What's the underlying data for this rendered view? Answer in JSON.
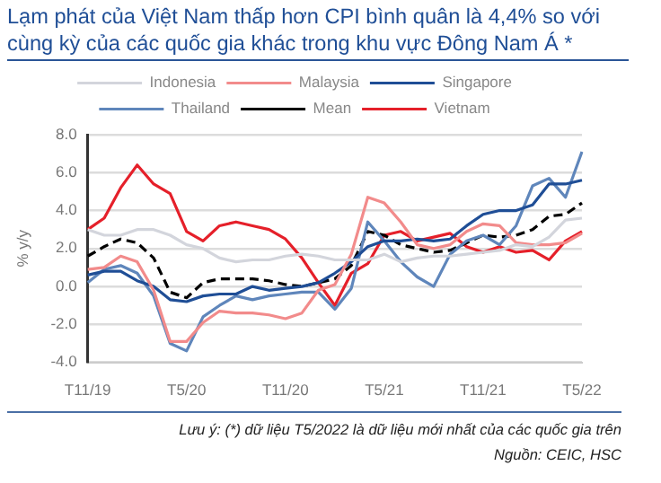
{
  "chart_data": {
    "type": "line",
    "title": "Lạm phát của Việt Nam thấp hơn CPI bình quân là 4,4% so với cùng kỳ của các quốc gia khác trong khu vực Đông Nam Á *",
    "ylabel": "% y/y",
    "categories": [
      "T11/19",
      null,
      null,
      null,
      null,
      null,
      "T5/20",
      null,
      null,
      null,
      null,
      null,
      "T11/20",
      null,
      null,
      null,
      null,
      null,
      "T5/21",
      null,
      null,
      null,
      null,
      null,
      "T11/21",
      null,
      null,
      null,
      null,
      null,
      "T5/22"
    ],
    "series": [
      {
        "name": "Indonesia",
        "color": "#d3d5dc",
        "values": [
          3.0,
          2.7,
          2.7,
          3.0,
          3.0,
          2.7,
          2.2,
          2.0,
          1.5,
          1.3,
          1.4,
          1.4,
          1.6,
          1.7,
          1.6,
          1.4,
          1.4,
          1.4,
          1.7,
          1.3,
          1.5,
          1.6,
          1.6,
          1.7,
          1.8,
          1.9,
          2.2,
          2.1,
          2.6,
          3.5,
          3.6
        ]
      },
      {
        "name": "Malaysia",
        "color": "#f28b8b",
        "values": [
          0.9,
          1.0,
          1.6,
          1.3,
          -0.2,
          -2.9,
          -2.9,
          -1.9,
          -1.3,
          -1.4,
          -1.4,
          -1.5,
          -1.7,
          -1.4,
          -0.2,
          0.1,
          1.7,
          4.7,
          4.4,
          3.4,
          2.2,
          2.0,
          2.2,
          2.9,
          3.3,
          3.2,
          2.3,
          2.2,
          2.2,
          2.3,
          2.8
        ]
      },
      {
        "name": "Singapore",
        "color": "#1f4e96",
        "values": [
          0.6,
          0.8,
          0.8,
          0.3,
          0.0,
          -0.7,
          -0.8,
          -0.5,
          -0.4,
          -0.4,
          0.0,
          -0.2,
          -0.1,
          0.0,
          0.2,
          0.7,
          1.3,
          2.1,
          2.4,
          2.4,
          2.5,
          2.4,
          2.5,
          3.2,
          3.8,
          4.0,
          4.0,
          4.3,
          5.4,
          5.4,
          5.6
        ]
      },
      {
        "name": "Thailand",
        "color": "#5f86bb",
        "values": [
          0.2,
          0.9,
          1.1,
          0.7,
          -0.5,
          -3.0,
          -3.4,
          -1.6,
          -1.0,
          -0.5,
          -0.7,
          -0.5,
          -0.4,
          -0.3,
          -0.3,
          -1.2,
          -0.1,
          3.4,
          2.4,
          1.3,
          0.5,
          0.0,
          1.7,
          2.4,
          2.7,
          2.2,
          3.2,
          5.3,
          5.7,
          4.7,
          7.1
        ]
      },
      {
        "name": "Mean",
        "color": "#000000",
        "line_style": "dashed",
        "values": [
          1.6,
          2.1,
          2.5,
          2.3,
          1.5,
          -0.3,
          -0.6,
          0.2,
          0.4,
          0.4,
          0.4,
          0.3,
          0.1,
          0.0,
          0.2,
          0.4,
          1.1,
          2.9,
          2.7,
          2.2,
          2.0,
          1.8,
          1.9,
          2.3,
          2.7,
          2.6,
          2.7,
          3.0,
          3.7,
          3.8,
          4.4
        ]
      },
      {
        "name": "Vietnam",
        "color": "#e5202a",
        "values": [
          3.0,
          3.6,
          5.2,
          6.4,
          5.4,
          4.9,
          2.9,
          2.4,
          3.2,
          3.4,
          3.2,
          3.0,
          2.5,
          1.5,
          0.2,
          -1.0,
          0.7,
          1.2,
          2.7,
          2.9,
          2.4,
          2.6,
          2.8,
          2.1,
          1.8,
          2.1,
          1.8,
          1.9,
          1.4,
          2.4,
          2.9
        ]
      }
    ],
    "ylim": [
      -4.0,
      8.0
    ],
    "yticks": [
      {
        "value": -4,
        "label": "-4.0"
      },
      {
        "value": -2,
        "label": "-2.0"
      },
      {
        "value": 0,
        "label": "0.0"
      },
      {
        "value": 2,
        "label": "2.0"
      },
      {
        "value": 4,
        "label": "4.0"
      },
      {
        "value": 6,
        "label": "6.0"
      },
      {
        "value": 8,
        "label": "8.0"
      }
    ],
    "grid": "y",
    "legend": "top",
    "line_style": "solid",
    "marker": "none",
    "annotations": [
      "Lưu ý: (*) dữ liệu T5/2022 là dữ liệu mới nhất của các quốc gia trên",
      "Nguồn: CEIC, HSC"
    ]
  }
}
